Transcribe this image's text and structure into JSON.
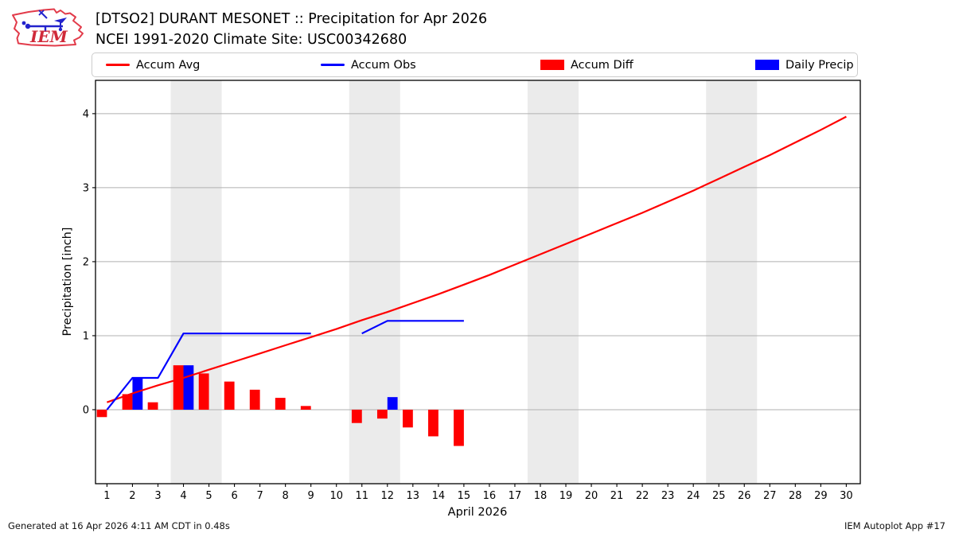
{
  "header": {
    "title_line1": "[DTSO2] DURANT MESONET :: Precipitation for Apr 2026",
    "title_line2": "NCEI 1991-2020 Climate Site: USC00342680"
  },
  "logo": {
    "text": "IEM"
  },
  "legend": {
    "items": [
      {
        "label": "Accum Avg",
        "swatch": "line",
        "color": "#ff0000"
      },
      {
        "label": "Accum Obs",
        "swatch": "line",
        "color": "#0000ff"
      },
      {
        "label": "Accum Diff",
        "swatch": "patch",
        "color": "#ff0000"
      },
      {
        "label": "Daily Precip",
        "swatch": "patch",
        "color": "#0000ff"
      }
    ]
  },
  "footer": {
    "left": "Generated at 16 Apr 2026 4:11 AM CDT in 0.48s",
    "right": "IEM Autoplot App #17"
  },
  "chart_data": {
    "type": "line+bar",
    "title": "[DTSO2] DURANT MESONET :: Precipitation for Apr 2026",
    "subtitle": "NCEI 1991-2020 Climate Site: USC00342680",
    "xlabel": "April 2026",
    "ylabel": "Precipitation [inch]",
    "xlim": [
      0.55,
      30.55
    ],
    "ylim": [
      -1.0,
      4.45
    ],
    "xticks": [
      1,
      2,
      3,
      4,
      5,
      6,
      7,
      8,
      9,
      10,
      11,
      12,
      13,
      14,
      15,
      16,
      17,
      18,
      19,
      20,
      21,
      22,
      23,
      24,
      25,
      26,
      27,
      28,
      29,
      30
    ],
    "yticks": [
      0,
      1,
      2,
      3,
      4
    ],
    "grid": "horizontal",
    "grid_color": "#b0b0b0",
    "band_color": "#ebebeb",
    "weekend_bands_x": [
      [
        3.5,
        5.5
      ],
      [
        10.5,
        12.5
      ],
      [
        17.5,
        19.5
      ],
      [
        24.5,
        26.5
      ]
    ],
    "legend_position": "top row outside axes",
    "series": [
      {
        "name": "Accum Avg",
        "type": "line",
        "color": "#ff0000",
        "line_width": 2.2,
        "points": [
          [
            1,
            0.1
          ],
          [
            2,
            0.22
          ],
          [
            3,
            0.33
          ],
          [
            4,
            0.43
          ],
          [
            5,
            0.54
          ],
          [
            6,
            0.65
          ],
          [
            7,
            0.76
          ],
          [
            8,
            0.87
          ],
          [
            9,
            0.98
          ],
          [
            10,
            1.09
          ],
          [
            11,
            1.21
          ],
          [
            12,
            1.32
          ],
          [
            13,
            1.44
          ],
          [
            14,
            1.56
          ],
          [
            15,
            1.69
          ],
          [
            16,
            1.82
          ],
          [
            17,
            1.96
          ],
          [
            18,
            2.1
          ],
          [
            19,
            2.24
          ],
          [
            20,
            2.38
          ],
          [
            21,
            2.52
          ],
          [
            22,
            2.66
          ],
          [
            23,
            2.81
          ],
          [
            24,
            2.96
          ],
          [
            25,
            3.12
          ],
          [
            26,
            3.28
          ],
          [
            27,
            3.44
          ],
          [
            28,
            3.61
          ],
          [
            29,
            3.78
          ],
          [
            30,
            3.96
          ]
        ]
      },
      {
        "name": "Accum Obs",
        "type": "line",
        "color": "#0000ff",
        "line_width": 2.2,
        "segments": [
          [
            [
              1,
              0.0
            ],
            [
              2,
              0.43
            ],
            [
              3,
              0.43
            ],
            [
              4,
              1.03
            ],
            [
              9,
              1.03
            ]
          ],
          [
            [
              11,
              1.03
            ],
            [
              12,
              1.2
            ],
            [
              15,
              1.2
            ]
          ]
        ]
      },
      {
        "name": "Accum Diff",
        "type": "bar",
        "color": "#ff0000",
        "offset": -0.4,
        "bar_width": 0.4,
        "points": [
          [
            1,
            -0.1
          ],
          [
            2,
            0.21
          ],
          [
            3,
            0.1
          ],
          [
            4,
            0.6
          ],
          [
            5,
            0.49
          ],
          [
            6,
            0.38
          ],
          [
            7,
            0.27
          ],
          [
            8,
            0.16
          ],
          [
            9,
            0.05
          ],
          [
            11,
            -0.18
          ],
          [
            12,
            -0.12
          ],
          [
            13,
            -0.24
          ],
          [
            14,
            -0.36
          ],
          [
            15,
            -0.49
          ]
        ]
      },
      {
        "name": "Daily Precip",
        "type": "bar",
        "color": "#0000ff",
        "offset": 0.0,
        "bar_width": 0.4,
        "points": [
          [
            2,
            0.43
          ],
          [
            4,
            0.6
          ],
          [
            12,
            0.17
          ]
        ]
      }
    ]
  }
}
